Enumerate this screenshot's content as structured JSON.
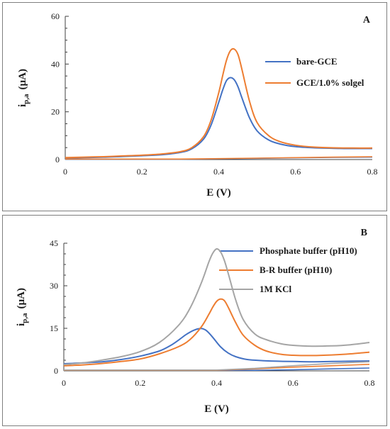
{
  "chart_data": [
    {
      "type": "line",
      "panel_label": "A",
      "xlabel": "E (V)",
      "ylabel_main": "i",
      "ylabel_sub": "p,a",
      "ylabel_unit": "(µA)",
      "xlim": [
        0,
        0.8
      ],
      "ylim": [
        0,
        60
      ],
      "xticks": [
        0,
        0.2,
        0.4,
        0.6,
        0.8
      ],
      "xtick_labels": [
        "0",
        "0.2",
        "0.4",
        "0.6",
        "0.8"
      ],
      "yticks": [
        0,
        20,
        40,
        60
      ],
      "ytick_labels": [
        "0",
        "20",
        "40",
        "60"
      ],
      "legend_position": "top-right",
      "series": [
        {
          "name": "bare-GCE",
          "color": "#4472C4",
          "x": [
            0,
            0.05,
            0.1,
            0.15,
            0.2,
            0.25,
            0.3,
            0.33,
            0.36,
            0.38,
            0.4,
            0.41,
            0.42,
            0.43,
            0.44,
            0.45,
            0.46,
            0.48,
            0.5,
            0.53,
            0.56,
            0.6,
            0.65,
            0.7,
            0.75,
            0.8
          ],
          "y": [
            0.6,
            0.8,
            1.0,
            1.3,
            1.6,
            2.0,
            3.0,
            4.5,
            8.5,
            14.5,
            24.0,
            29.0,
            33.0,
            34.3,
            33.5,
            30.5,
            26.0,
            17.5,
            12.0,
            8.2,
            6.5,
            5.4,
            4.9,
            4.7,
            4.6,
            4.6
          ],
          "return_x": [
            0,
            0.1,
            0.2,
            0.3,
            0.4,
            0.5,
            0.6,
            0.7,
            0.8
          ],
          "return_y": [
            0.1,
            0.1,
            0.1,
            0.1,
            0.3,
            0.5,
            0.7,
            0.9,
            1.0
          ]
        },
        {
          "name": "GCE/1.0% solgel",
          "color": "#ED7D31",
          "x": [
            0,
            0.05,
            0.1,
            0.15,
            0.2,
            0.25,
            0.3,
            0.33,
            0.36,
            0.38,
            0.4,
            0.41,
            0.42,
            0.43,
            0.44,
            0.45,
            0.46,
            0.48,
            0.5,
            0.53,
            0.56,
            0.6,
            0.65,
            0.7,
            0.75,
            0.8
          ],
          "y": [
            0.8,
            1.0,
            1.2,
            1.5,
            1.8,
            2.3,
            3.3,
            5.0,
            9.5,
            16.5,
            28.0,
            35.0,
            41.5,
            45.5,
            46.3,
            44.0,
            38.0,
            24.5,
            15.5,
            10.0,
            7.5,
            6.0,
            5.2,
            4.9,
            4.8,
            4.8
          ],
          "return_x": [
            0,
            0.1,
            0.2,
            0.3,
            0.4,
            0.5,
            0.6,
            0.7,
            0.8
          ],
          "return_y": [
            0.2,
            0.2,
            0.2,
            0.2,
            0.4,
            0.6,
            0.8,
            1.0,
            1.2
          ]
        }
      ]
    },
    {
      "type": "line",
      "panel_label": "B",
      "xlabel": "E (V)",
      "ylabel_main": "i",
      "ylabel_sub": "p,a",
      "ylabel_unit": "(µA)",
      "xlim": [
        0,
        0.8
      ],
      "ylim": [
        0,
        45
      ],
      "xticks": [
        0,
        0.2,
        0.4,
        0.6,
        0.8
      ],
      "xtick_labels": [
        "0",
        "0.2",
        "0.4",
        "0.6",
        "0.8"
      ],
      "yticks": [
        0,
        15,
        30,
        45
      ],
      "ytick_labels": [
        "0",
        "15",
        "30",
        "45"
      ],
      "legend_position": "top-right",
      "series": [
        {
          "name": "Phosphate buffer (pH10)",
          "color": "#4472C4",
          "x": [
            0,
            0.05,
            0.1,
            0.15,
            0.2,
            0.25,
            0.28,
            0.3,
            0.32,
            0.34,
            0.355,
            0.365,
            0.375,
            0.39,
            0.41,
            0.43,
            0.45,
            0.48,
            0.52,
            0.56,
            0.6,
            0.65,
            0.7,
            0.75,
            0.8
          ],
          "y": [
            2.5,
            2.8,
            3.2,
            4.0,
            5.2,
            7.0,
            9.0,
            10.8,
            12.8,
            14.3,
            14.9,
            14.8,
            14.0,
            11.8,
            8.5,
            6.3,
            5.0,
            4.0,
            3.6,
            3.4,
            3.3,
            3.2,
            3.3,
            3.4,
            3.5
          ],
          "return_x": [
            0,
            0.1,
            0.2,
            0.3,
            0.4,
            0.5,
            0.6,
            0.7,
            0.8
          ],
          "return_y": [
            0.2,
            0.2,
            0.2,
            0.2,
            0.2,
            0.2,
            0.4,
            0.7,
            1.0
          ]
        },
        {
          "name": "B-R buffer (pH10)",
          "color": "#ED7D31",
          "x": [
            0,
            0.05,
            0.1,
            0.15,
            0.2,
            0.25,
            0.3,
            0.33,
            0.36,
            0.38,
            0.39,
            0.4,
            0.41,
            0.42,
            0.43,
            0.45,
            0.47,
            0.5,
            0.53,
            0.57,
            0.6,
            0.65,
            0.7,
            0.75,
            0.8
          ],
          "y": [
            1.8,
            2.1,
            2.6,
            3.3,
            4.2,
            6.0,
            8.5,
            11.0,
            15.5,
            20.0,
            22.5,
            24.5,
            25.3,
            24.8,
            22.5,
            17.0,
            12.5,
            9.0,
            7.0,
            5.8,
            5.5,
            5.4,
            5.6,
            6.0,
            6.6
          ],
          "return_x": [
            0,
            0.1,
            0.2,
            0.3,
            0.4,
            0.5,
            0.6,
            0.7,
            0.8
          ],
          "return_y": [
            0.2,
            0.2,
            0.2,
            0.2,
            0.2,
            0.7,
            1.3,
            1.8,
            2.3
          ]
        },
        {
          "name": "1M KCl",
          "color": "#A5A5A5",
          "x": [
            0,
            0.05,
            0.1,
            0.15,
            0.2,
            0.25,
            0.3,
            0.33,
            0.36,
            0.38,
            0.39,
            0.4,
            0.41,
            0.42,
            0.43,
            0.45,
            0.47,
            0.5,
            0.53,
            0.57,
            0.6,
            0.65,
            0.7,
            0.75,
            0.8
          ],
          "y": [
            2.2,
            2.8,
            3.8,
            5.0,
            6.8,
            10.0,
            16.0,
            22.0,
            31.0,
            38.5,
            41.5,
            43.0,
            42.0,
            39.0,
            34.5,
            25.0,
            18.0,
            13.0,
            11.0,
            9.5,
            9.0,
            8.7,
            8.8,
            9.2,
            10.0
          ],
          "return_x": [
            0,
            0.1,
            0.2,
            0.3,
            0.4,
            0.5,
            0.6,
            0.7,
            0.8
          ],
          "return_y": [
            0.3,
            0.3,
            0.3,
            0.3,
            0.3,
            0.9,
            1.8,
            2.6,
            3.2
          ]
        }
      ]
    }
  ]
}
